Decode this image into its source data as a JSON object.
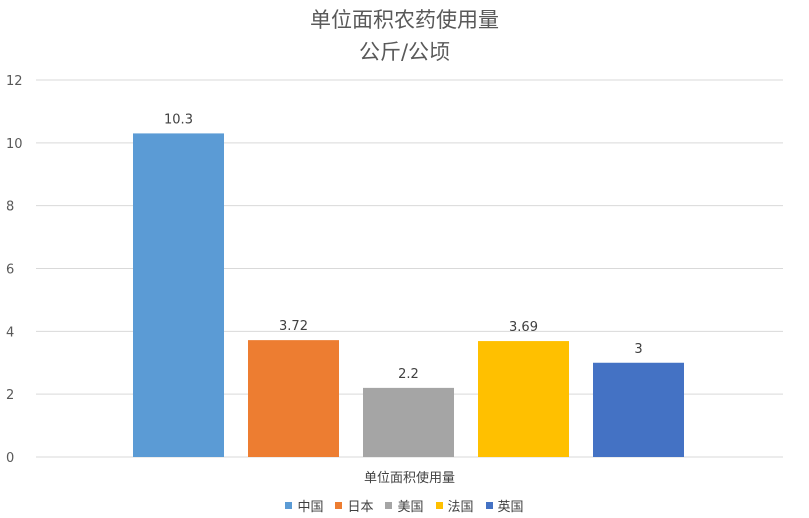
{
  "chart_data": {
    "type": "bar",
    "title": "单位面积农药使用量",
    "subtitle": "公斤/公顷",
    "xlabel": "单位面积使用量",
    "ylabel": "",
    "ylim": [
      0,
      12
    ],
    "yticks": [
      0,
      2,
      4,
      6,
      8,
      10,
      12
    ],
    "grid": true,
    "legend_position": "bottom",
    "categories": [
      "单位面积使用量"
    ],
    "series": [
      {
        "name": "中国",
        "values": [
          10.3
        ],
        "color": "#5B9BD5",
        "label": "10.3"
      },
      {
        "name": "日本",
        "values": [
          3.72
        ],
        "color": "#ED7D31",
        "label": "3.72"
      },
      {
        "name": "美国",
        "values": [
          2.2
        ],
        "color": "#A5A5A5",
        "label": "2.2"
      },
      {
        "name": "法国",
        "values": [
          3.69
        ],
        "color": "#FFC000",
        "label": "3.69"
      },
      {
        "name": "英国",
        "values": [
          3
        ],
        "color": "#4472C4",
        "label": "3"
      }
    ]
  }
}
